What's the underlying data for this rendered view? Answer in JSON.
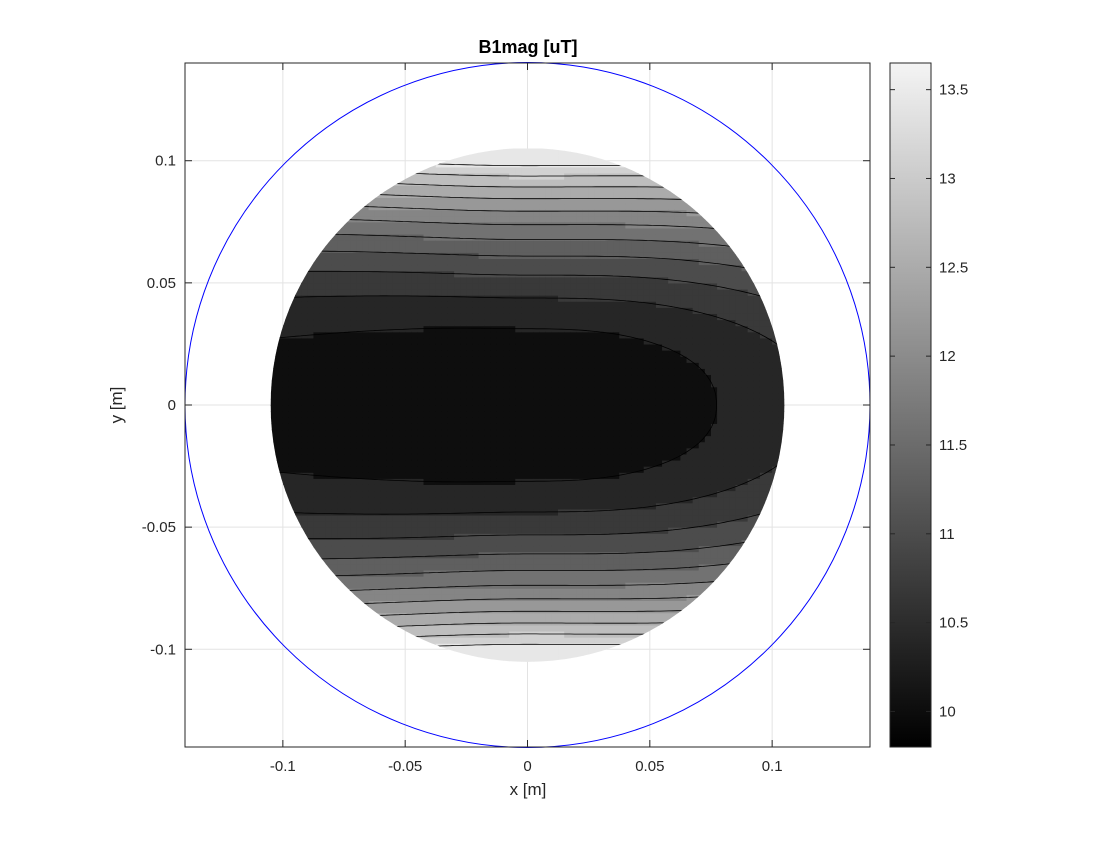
{
  "chart_data": {
    "type": "contour",
    "title": "B1mag [uT]",
    "xlabel": "x [m]",
    "ylabel": "y [m]",
    "xlim": [
      -0.14,
      0.14
    ],
    "ylim": [
      -0.14,
      0.14
    ],
    "xticks": [
      -0.1,
      -0.05,
      0,
      0.05,
      0.1
    ],
    "xtick_labels": [
      "-0.1",
      "-0.05",
      "0",
      "0.05",
      "0.1"
    ],
    "yticks": [
      -0.1,
      -0.05,
      0,
      0.05,
      0.1
    ],
    "ytick_labels": [
      "-0.1",
      "-0.05",
      "0",
      "0.05",
      "0.1"
    ],
    "grid": true,
    "colormap": "gray",
    "colorbar": {
      "location": "right",
      "limits": [
        9.8,
        13.65
      ],
      "ticks": [
        10,
        10.5,
        11,
        11.5,
        12,
        12.5,
        13,
        13.5
      ],
      "tick_labels": [
        "10",
        "10.5",
        "11",
        "11.5",
        "12",
        "12.5",
        "13",
        "13.5"
      ]
    },
    "contour_levels": [
      10.25,
      10.55,
      10.85,
      11.15,
      11.45,
      11.75,
      12.05,
      12.35,
      12.65,
      12.95,
      13.25
    ],
    "boundary_circle": {
      "center": [
        0,
        0
      ],
      "radius": 0.14,
      "color": "#0000ff"
    },
    "data_region": {
      "shape": "circle",
      "center": [
        0,
        0
      ],
      "radius": 0.105
    }
  }
}
